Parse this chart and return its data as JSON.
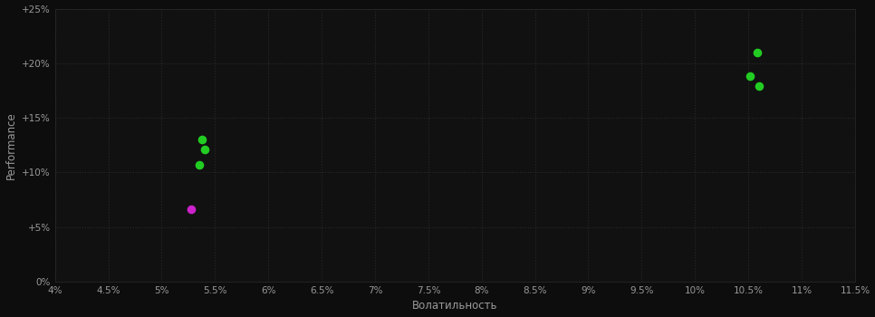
{
  "background_color": "#0d0d0d",
  "plot_bg_color": "#111111",
  "grid_color": "#2a2a2a",
  "text_color": "#999999",
  "xlabel": "Волатильность",
  "ylabel": "Performance",
  "xlim": [
    0.04,
    0.115
  ],
  "ylim": [
    0.0,
    0.25
  ],
  "xticks": [
    0.04,
    0.045,
    0.05,
    0.055,
    0.06,
    0.065,
    0.07,
    0.075,
    0.08,
    0.085,
    0.09,
    0.095,
    0.1,
    0.105,
    0.11,
    0.115
  ],
  "yticks": [
    0.0,
    0.05,
    0.1,
    0.15,
    0.2,
    0.25
  ],
  "green_points": [
    [
      0.0538,
      0.13
    ],
    [
      0.054,
      0.121
    ],
    [
      0.0535,
      0.107
    ],
    [
      0.1058,
      0.21
    ],
    [
      0.1052,
      0.188
    ],
    [
      0.106,
      0.179
    ]
  ],
  "magenta_points": [
    [
      0.0528,
      0.066
    ]
  ],
  "green_color": "#22cc22",
  "magenta_color": "#cc22cc",
  "dot_size": 35
}
